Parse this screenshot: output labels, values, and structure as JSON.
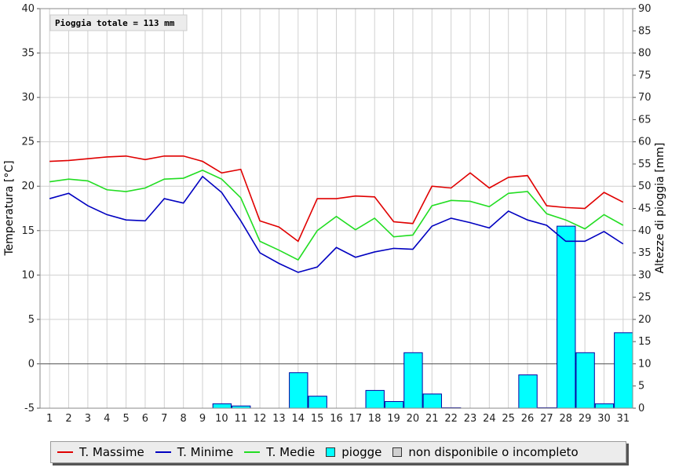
{
  "chart_data": {
    "type": "line",
    "annotation": "Pioggia totale = 113 mm",
    "ylabel_left": "Temperatura [°C]",
    "ylabel_right": "Altezze di pioggia [mm]",
    "ylim_left": [
      -5,
      40
    ],
    "ylim_right": [
      0,
      90
    ],
    "yticks_left": [
      "-5",
      "0",
      "5",
      "10",
      "15",
      "20",
      "25",
      "30",
      "35",
      "40"
    ],
    "yticks_right": [
      "0",
      "5",
      "10",
      "15",
      "20",
      "25",
      "30",
      "35",
      "40",
      "45",
      "50",
      "55",
      "60",
      "65",
      "70",
      "75",
      "80",
      "85",
      "90"
    ],
    "grid": true,
    "legend_position": "bottom",
    "categories": [
      "1",
      "2",
      "3",
      "4",
      "5",
      "6",
      "7",
      "8",
      "9",
      "10",
      "11",
      "12",
      "13",
      "14",
      "15",
      "16",
      "17",
      "18",
      "19",
      "20",
      "21",
      "22",
      "23",
      "24",
      "25",
      "26",
      "27",
      "28",
      "29",
      "30",
      "31"
    ],
    "series": [
      {
        "name": "T. Massime",
        "color": "#e00000",
        "values": [
          22.8,
          22.9,
          23.1,
          23.3,
          23.4,
          23.0,
          23.4,
          23.4,
          22.8,
          21.5,
          21.9,
          16.1,
          15.4,
          13.8,
          18.6,
          18.6,
          18.9,
          18.8,
          16.0,
          15.8,
          20.0,
          19.8,
          21.5,
          19.8,
          21.0,
          21.2,
          17.8,
          17.6,
          17.5,
          19.3,
          18.2
        ]
      },
      {
        "name": "T. Minime",
        "color": "#0000c0",
        "values": [
          18.6,
          19.2,
          17.8,
          16.8,
          16.2,
          16.1,
          18.6,
          18.1,
          21.1,
          19.3,
          16.1,
          12.5,
          11.3,
          10.3,
          10.9,
          13.1,
          12.0,
          12.6,
          13.0,
          12.9,
          15.5,
          16.4,
          15.9,
          15.3,
          17.2,
          16.2,
          15.6,
          13.8,
          13.8,
          14.9,
          13.5
        ]
      },
      {
        "name": "T. Medie",
        "color": "#22dd22",
        "values": [
          20.5,
          20.8,
          20.6,
          19.6,
          19.4,
          19.8,
          20.8,
          20.9,
          21.8,
          20.8,
          18.7,
          13.8,
          12.8,
          11.7,
          15.0,
          16.6,
          15.1,
          16.4,
          14.3,
          14.5,
          17.8,
          18.4,
          18.3,
          17.7,
          19.2,
          19.4,
          16.9,
          16.2,
          15.2,
          16.8,
          15.6
        ]
      }
    ],
    "rain": {
      "name": "piogge",
      "color": "#00ffff",
      "values": [
        0,
        0,
        0,
        0,
        0,
        0,
        0,
        0,
        0,
        1,
        0.5,
        0,
        0,
        8,
        2.7,
        0,
        0,
        4,
        1.5,
        12.5,
        3.2,
        0.1,
        0,
        0,
        0,
        7.5,
        0.1,
        41,
        12.5,
        1,
        17
      ]
    },
    "missing_label": "non disponibile o incompleto",
    "missing_color": "#d0d0d0"
  }
}
